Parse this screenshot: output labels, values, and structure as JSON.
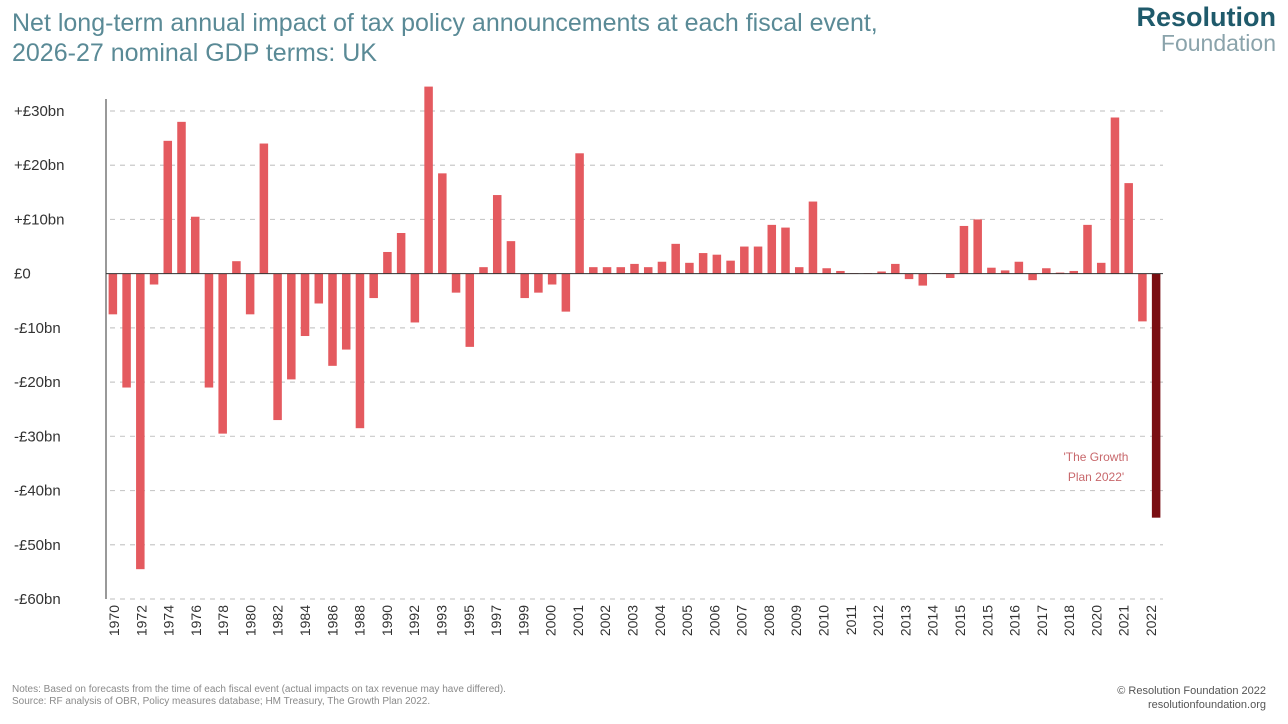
{
  "header": {
    "title_line1": "Net long-term annual impact of tax policy announcements at each fiscal event,",
    "title_line2": "2026-27 nominal GDP terms: UK"
  },
  "brand": {
    "name_top": "Resolution",
    "name_bottom": "Foundation"
  },
  "footer": {
    "notes_line1": "Notes: Based on forecasts from the time of each fiscal event (actual impacts on tax revenue may have differed).",
    "notes_line2": "Source: RF analysis of OBR, Policy measures database; HM Treasury, The Growth Plan 2022.",
    "copyright": "© Resolution Foundation 2022",
    "website": "resolutionfoundation.org"
  },
  "colors": {
    "bar": "#e45a5f",
    "highlight_bar": "#7a0e12",
    "gridline": "#c9c9c9",
    "axis": "#333333",
    "annotation": "#c8686c"
  },
  "chart_data": {
    "type": "bar",
    "ylim": [
      -60,
      30
    ],
    "yticks": [
      30,
      20,
      10,
      0,
      -10,
      -20,
      -30,
      -40,
      -50,
      -60
    ],
    "ytick_labels": [
      "+£30bn",
      "+£20bn",
      "+£10bn",
      "£0",
      "-£10bn",
      "-£20bn",
      "-£30bn",
      "-£40bn",
      "-£50bn",
      "-£60bn"
    ],
    "grid": true,
    "xtick_labels": [
      "1970",
      "1972",
      "1974",
      "1976",
      "1978",
      "1980",
      "1982",
      "1984",
      "1986",
      "1988",
      "1990",
      "1992",
      "1993",
      "1995",
      "1997",
      "1999",
      "2000",
      "2001",
      "2002",
      "2003",
      "2004",
      "2005",
      "2006",
      "2007",
      "2008",
      "2009",
      "2010",
      "2011",
      "2012",
      "2013",
      "2014",
      "2015",
      "2015",
      "2016",
      "2017",
      "2018",
      "2020",
      "2021",
      "2022"
    ],
    "values": [
      -7.5,
      -21,
      -54.5,
      -2,
      24.5,
      28,
      10.5,
      -21,
      -29.5,
      2.3,
      -7.5,
      24,
      -27,
      -19.5,
      -11.5,
      -5.5,
      -17,
      -14,
      -28.5,
      -4.5,
      4,
      7.5,
      -9,
      34.5,
      18.5,
      -3.5,
      -13.5,
      1.2,
      14.5,
      6,
      -4.5,
      -3.5,
      -2,
      -7,
      22.2,
      1.2,
      1.2,
      1.2,
      1.8,
      1.2,
      2.2,
      5.5,
      2,
      3.8,
      3.5,
      2.4,
      5,
      5,
      9,
      8.5,
      1.2,
      13.3,
      1,
      0.5,
      0.1,
      0.1,
      0.4,
      1.8,
      -1,
      -2.2,
      0.1,
      -0.8,
      8.8,
      10,
      1.1,
      0.6,
      2.2,
      -1.2,
      1,
      0.2,
      0.5,
      9,
      2,
      28.8,
      16.7,
      -8.8,
      -45
    ],
    "highlight_index": 76,
    "annotation_line1": "'The Growth",
    "annotation_line2": "Plan 2022'"
  }
}
